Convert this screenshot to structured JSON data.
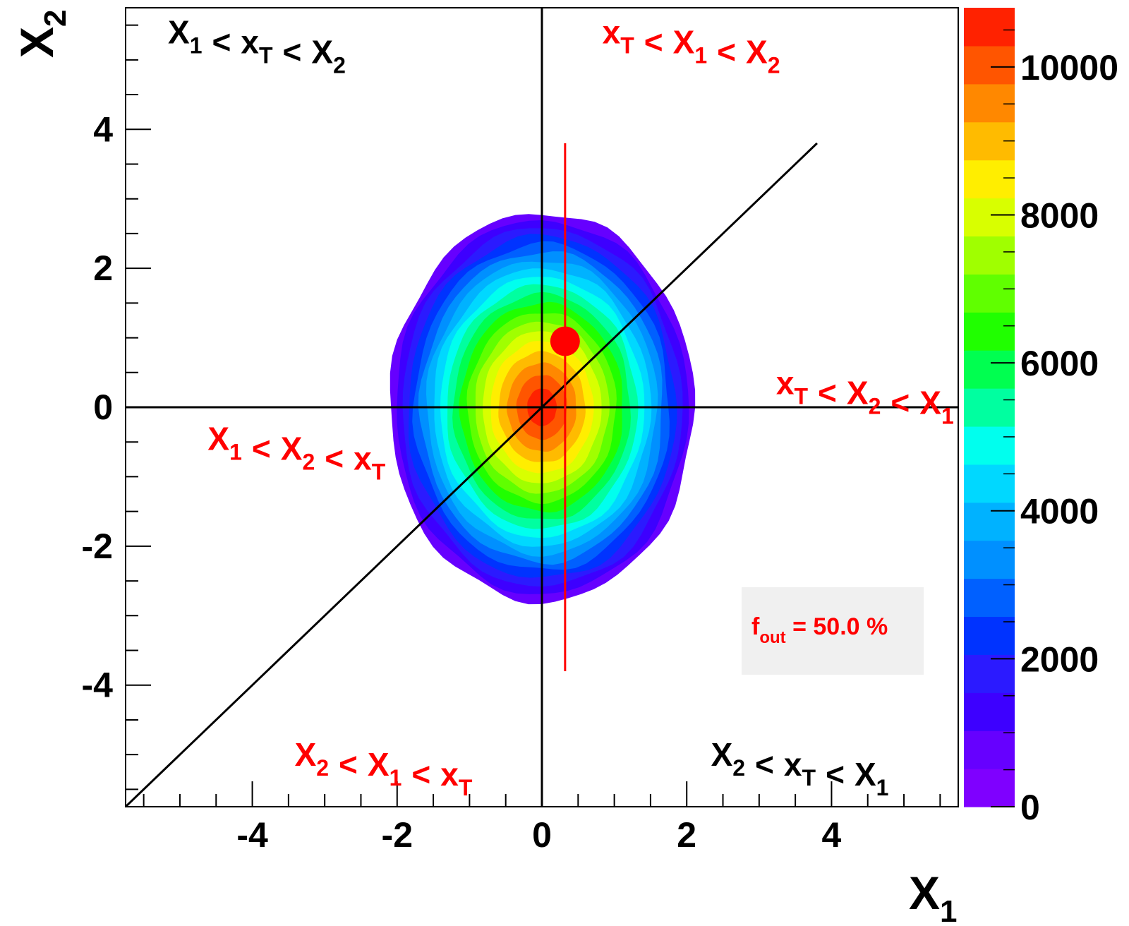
{
  "chart_data": {
    "type": "heatmap",
    "subtype": "filled-contour",
    "xlabel": {
      "main": "X",
      "sub": "1"
    },
    "ylabel": {
      "main": "X",
      "sub": "2"
    },
    "xlim": [
      -5.75,
      5.75
    ],
    "ylim": [
      -5.75,
      5.75
    ],
    "xticks": [
      -4,
      -2,
      0,
      2,
      4
    ],
    "xtick_labels": [
      "-4",
      "-2",
      "0",
      "2",
      "4"
    ],
    "yticks": [
      -4,
      -2,
      0,
      2,
      4
    ],
    "ytick_labels": [
      "-4",
      "-2",
      "0",
      "2",
      "4"
    ],
    "grid": false,
    "distribution": {
      "description_values": "bivariate density centered at origin",
      "center": [
        0,
        0
      ],
      "half_width_x": 2.1,
      "half_height_y": 2.8,
      "levels": 20
    },
    "colorbar": {
      "min": 0,
      "max": 10800,
      "ticks": [
        0,
        2000,
        4000,
        6000,
        8000,
        10000
      ],
      "tick_labels": [
        "0",
        "2000",
        "4000",
        "6000",
        "8000",
        "10000"
      ],
      "colors": [
        "#7f00ff",
        "#6600ff",
        "#3d00ff",
        "#2b1aff",
        "#0033ff",
        "#0060ff",
        "#0090ff",
        "#00b2ff",
        "#00d8ff",
        "#00ffee",
        "#00ffa0",
        "#00ff50",
        "#20ff00",
        "#60ff00",
        "#a0ff00",
        "#d8ff00",
        "#ffee00",
        "#ffbb00",
        "#ff8800",
        "#ff5500",
        "#ff2200"
      ]
    },
    "lines": [
      {
        "name": "x1-axis-line",
        "x": [
          -5.75,
          5.75
        ],
        "y": [
          0,
          0
        ],
        "color": "#000000"
      },
      {
        "name": "x2-axis-line",
        "x": [
          0,
          0
        ],
        "y": [
          -5.75,
          5.75
        ],
        "color": "#000000"
      },
      {
        "name": "diagonal-line",
        "x": [
          -5.75,
          3.8
        ],
        "y": [
          -5.75,
          3.8
        ],
        "color": "#000000"
      },
      {
        "name": "xt-vertical-line",
        "x": [
          0.32,
          0.32
        ],
        "y": [
          -3.8,
          3.8
        ],
        "color": "#ff0000"
      }
    ],
    "marker": {
      "x": 0.32,
      "y": 0.95,
      "color": "#ff0000"
    },
    "region_labels": [
      {
        "id": "upper-left",
        "color": "#000000",
        "x": -5.75,
        "y": 5.4,
        "parts": [
          [
            "X",
            "1"
          ],
          [
            "<",
            ""
          ],
          [
            "x",
            "T"
          ],
          [
            "<",
            ""
          ],
          [
            "X",
            "2"
          ]
        ]
      },
      {
        "id": "upper-right",
        "color": "#ff0000",
        "x": 0.25,
        "y": 5.4,
        "parts": [
          [
            "x",
            "T"
          ],
          [
            "<",
            ""
          ],
          [
            "X",
            "1"
          ],
          [
            "<",
            ""
          ],
          [
            "X",
            "2"
          ]
        ]
      },
      {
        "id": "mid-right",
        "color": "#ff0000",
        "x": 2.65,
        "y": 0.35,
        "parts": [
          [
            "x",
            "T"
          ],
          [
            "<",
            ""
          ],
          [
            "X",
            "2"
          ],
          [
            "<",
            ""
          ],
          [
            "X",
            "1"
          ]
        ]
      },
      {
        "id": "mid-left",
        "color": "#ff0000",
        "x": -5.2,
        "y": -0.45,
        "parts": [
          [
            "X",
            "1"
          ],
          [
            "<",
            ""
          ],
          [
            "X",
            "2"
          ],
          [
            "<",
            ""
          ],
          [
            "x",
            "T"
          ]
        ]
      },
      {
        "id": "bottom-left",
        "color": "#ff0000",
        "x": -4.0,
        "y": -5.0,
        "parts": [
          [
            "X",
            "2"
          ],
          [
            "<",
            ""
          ],
          [
            "X",
            "1"
          ],
          [
            "<",
            ""
          ],
          [
            "x",
            "T"
          ]
        ]
      },
      {
        "id": "bottom-right",
        "color": "#000000",
        "x": 1.75,
        "y": -5.0,
        "parts": [
          [
            "X",
            "2"
          ],
          [
            "<",
            ""
          ],
          [
            "x",
            "T"
          ],
          [
            "<",
            ""
          ],
          [
            "X",
            "1"
          ]
        ]
      }
    ],
    "annotation": {
      "text_main": "f",
      "text_sub": "out",
      "text_rest": " = 50.0 %",
      "color": "#ff0000",
      "background": "#f0f0f0"
    }
  }
}
